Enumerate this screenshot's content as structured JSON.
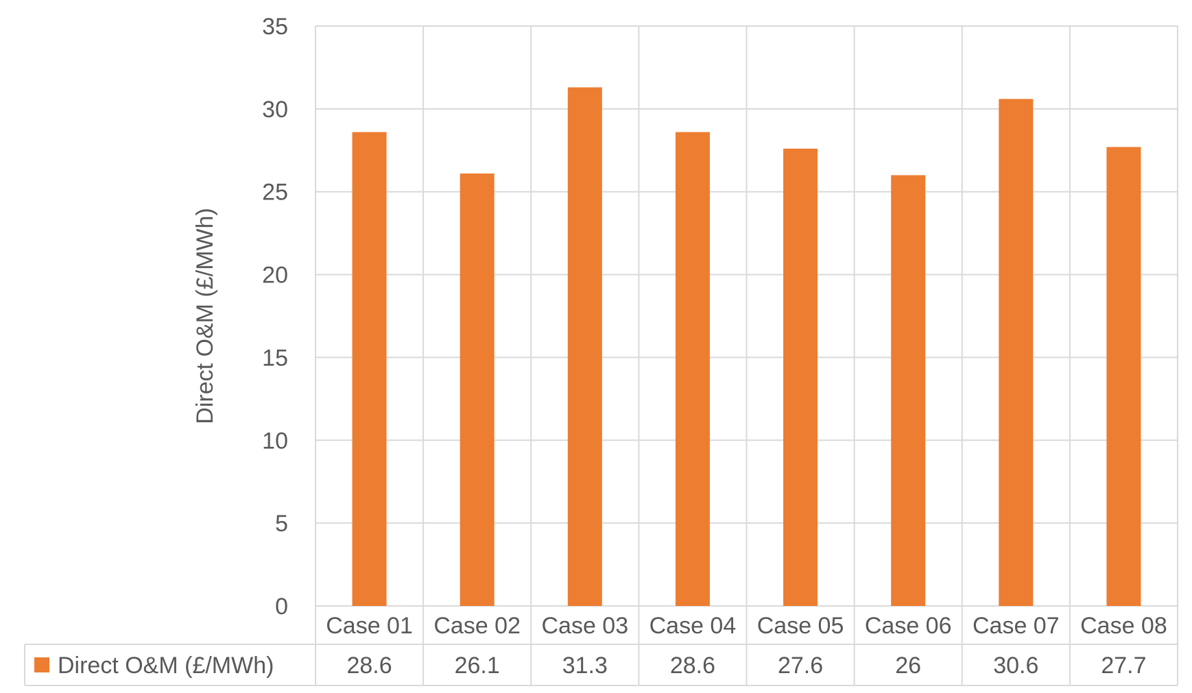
{
  "chart_data": {
    "type": "bar",
    "categories": [
      "Case 01",
      "Case 02",
      "Case 03",
      "Case 04",
      "Case 05",
      "Case 06",
      "Case 07",
      "Case 08"
    ],
    "series": [
      {
        "name": "Direct O&M (£/MWh)",
        "values": [
          28.6,
          26.1,
          31.3,
          28.6,
          27.6,
          26,
          30.6,
          27.7
        ],
        "display_values": [
          "28.6",
          "26.1",
          "31.3",
          "28.6",
          "27.6",
          "26",
          "30.6",
          "27.7"
        ],
        "color": "#ED7D31"
      }
    ],
    "ylabel": "Direct O&M (£/MWh)",
    "ylim": [
      0,
      35
    ],
    "yticks": [
      "0",
      "5",
      "10",
      "15",
      "20",
      "25",
      "30",
      "35"
    ],
    "grid": true,
    "data_table": true,
    "gridline_color": "#D9D9D9",
    "text_color": "#595959"
  }
}
